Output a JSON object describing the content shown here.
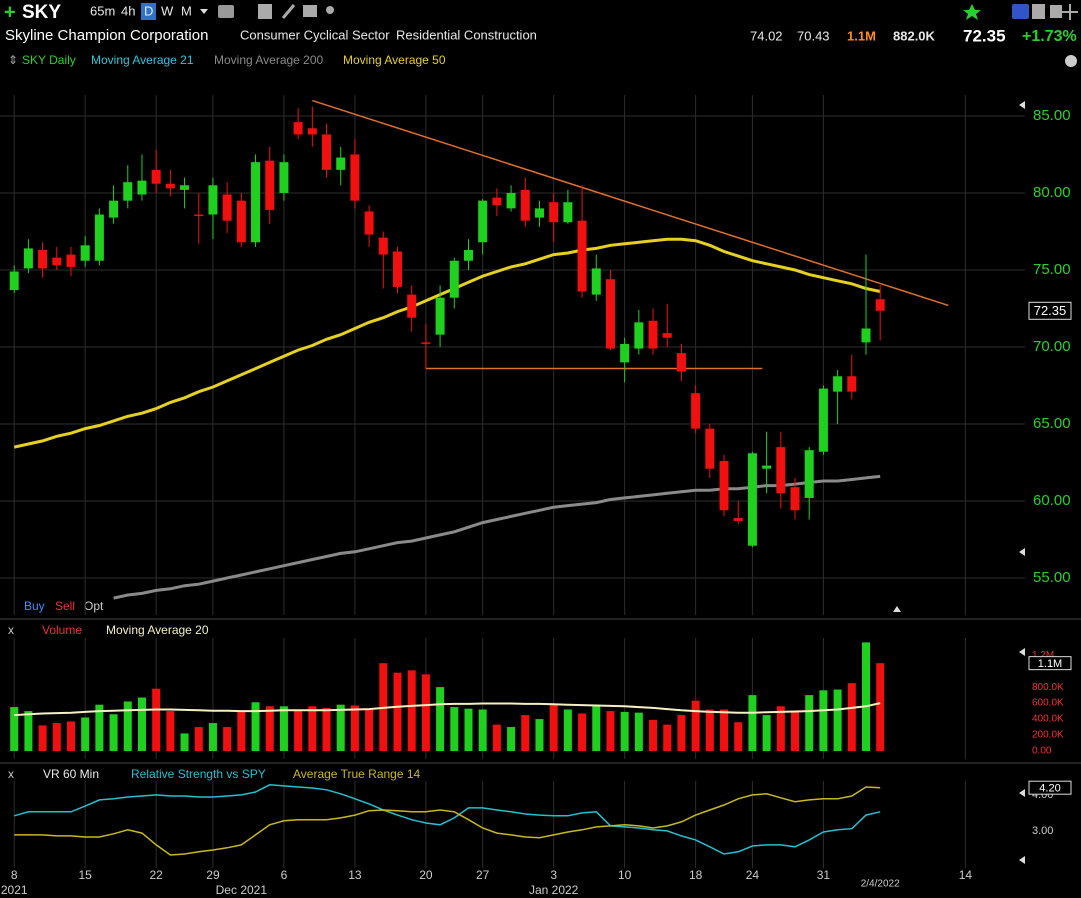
{
  "header": {
    "symbol": "SKY",
    "timeframes": [
      "65m",
      "4h",
      "D",
      "W",
      "M"
    ],
    "company": "Skyline Champion Corporation",
    "sector": "Consumer Cyclical Sector",
    "industry": "Residential Construction",
    "stats": [
      "74.02",
      "70.43",
      "1.1M",
      "882.0K"
    ],
    "last": "72.35",
    "change": "+1.73%"
  },
  "chart_data": [
    {
      "type": "candlestick",
      "legend_title": "SKY Daily",
      "legend_color": "#2ad02a",
      "up_color": "#1fd01f",
      "down_color": "#f01010",
      "open": [
        73.7,
        75.1,
        76.3,
        75.8,
        76,
        75.6,
        75.6,
        78.4,
        79.5,
        79.9,
        81.5,
        80.6,
        80.2,
        78.6,
        78.6,
        79.9,
        79.5,
        76.8,
        82.1,
        80,
        84.6,
        84.2,
        83.8,
        81.5,
        82.5,
        78.8,
        77.1,
        76.2,
        73.4,
        70.3,
        70.8,
        73.2,
        75.6,
        76.8,
        79.7,
        79,
        80.2,
        78.4,
        79.4,
        78.1,
        78.2,
        73.4,
        74.4,
        69,
        69.9,
        71.7,
        70.9,
        69.6,
        67,
        64.7,
        62.6,
        58.9,
        57.1,
        62.1,
        63.5,
        60.9,
        60.2,
        63.2,
        67.1,
        68.1,
        70.3,
        73.1
      ],
      "high": [
        75.3,
        77,
        76.8,
        76.5,
        76.5,
        77.2,
        79,
        80.5,
        81.8,
        82.5,
        82.8,
        81.5,
        81,
        80,
        81,
        80.7,
        80,
        82.5,
        83,
        82.5,
        85.5,
        85.6,
        84.5,
        83,
        83.5,
        79.2,
        77.5,
        76.5,
        74,
        71.5,
        74,
        75.8,
        77,
        79.6,
        80.3,
        80.5,
        81,
        79.5,
        80,
        80.2,
        80.5,
        76,
        75,
        70.6,
        72.4,
        72.5,
        72.8,
        70.2,
        67.5,
        65,
        63,
        60,
        63.2,
        64.5,
        64.5,
        61.5,
        63.5,
        67.5,
        68.5,
        69.5,
        76,
        74.02
      ],
      "low": [
        73.5,
        74.8,
        74.5,
        75,
        74.6,
        75.2,
        75.3,
        78,
        79,
        79.5,
        80,
        79.8,
        79,
        76.7,
        77,
        77.4,
        76.5,
        76.5,
        78,
        79.5,
        83.5,
        83,
        81,
        80.5,
        79,
        76.5,
        73.8,
        73.5,
        71,
        68.6,
        70,
        72.5,
        75,
        76,
        78.5,
        78.8,
        77.8,
        77.8,
        76.8,
        78,
        73.2,
        73,
        69.8,
        67.7,
        69.5,
        69.5,
        70,
        67.8,
        64.4,
        61.5,
        59,
        58.5,
        57,
        60.5,
        59.5,
        58.8,
        58.8,
        63,
        65,
        66.6,
        69.5,
        70.43
      ],
      "close": [
        74.9,
        76.4,
        75.1,
        75.3,
        75.2,
        76.6,
        78.6,
        79.5,
        80.7,
        80.8,
        80.6,
        80.3,
        80.5,
        78.5,
        80.5,
        78.2,
        76.8,
        82,
        78.9,
        82,
        83.8,
        83.8,
        81.5,
        82.3,
        79.5,
        77.3,
        76,
        73.9,
        71.9,
        70.2,
        73.2,
        75.6,
        76.3,
        79.5,
        79.2,
        80,
        78.2,
        79,
        78.1,
        79.4,
        73.6,
        75.1,
        69.9,
        70.2,
        71.6,
        69.9,
        70.6,
        68.4,
        64.7,
        62.1,
        59.4,
        58.7,
        63.1,
        62.3,
        60.5,
        59.4,
        63.3,
        67.3,
        68.1,
        67.1,
        71.2,
        72.35
      ],
      "overlays": [
        {
          "name": "Moving Average 21",
          "color": "#2cc8d8"
        },
        {
          "name": "Moving Average 200",
          "color": "#8a8a8a",
          "values": [
            null,
            null,
            null,
            null,
            null,
            null,
            null,
            53.7,
            53.9,
            54.0,
            54.2,
            54.3,
            54.5,
            54.6,
            54.8,
            55.0,
            55.2,
            55.4,
            55.6,
            55.8,
            56.0,
            56.2,
            56.4,
            56.6,
            56.7,
            56.9,
            57.1,
            57.3,
            57.4,
            57.6,
            57.8,
            58.0,
            58.3,
            58.6,
            58.8,
            59.0,
            59.2,
            59.4,
            59.6,
            59.7,
            59.8,
            59.9,
            60.1,
            60.2,
            60.3,
            60.4,
            60.5,
            60.6,
            60.7,
            60.7,
            60.8,
            60.8,
            60.9,
            61.0,
            61.0,
            61.1,
            61.2,
            61.3,
            61.3,
            61.4,
            61.5,
            61.6
          ]
        },
        {
          "name": "Moving Average 50",
          "color": "#e6d020",
          "values": [
            63.5,
            63.7,
            63.9,
            64.2,
            64.4,
            64.7,
            64.9,
            65.2,
            65.5,
            65.7,
            66.0,
            66.4,
            66.7,
            67.1,
            67.4,
            67.8,
            68.2,
            68.6,
            69.0,
            69.4,
            69.8,
            70.1,
            70.5,
            70.8,
            71.2,
            71.6,
            71.9,
            72.3,
            72.6,
            73.0,
            73.4,
            73.8,
            74.2,
            74.6,
            74.9,
            75.2,
            75.4,
            75.7,
            76.0,
            76.1,
            76.3,
            76.4,
            76.6,
            76.7,
            76.8,
            76.9,
            77.0,
            77.0,
            76.9,
            76.6,
            76.2,
            75.9,
            75.6,
            75.4,
            75.2,
            75.0,
            74.7,
            74.5,
            74.3,
            74.1,
            73.8,
            73.6
          ]
        }
      ],
      "trendlines": [
        {
          "x": [
            21,
            65.8
          ],
          "y": [
            86,
            72.7
          ],
          "color": "#e0702a"
        },
        {
          "x": [
            29,
            52.7
          ],
          "y": [
            68.6,
            68.6
          ],
          "color": "#e0702a"
        }
      ],
      "marker": {
        "value": 72.35,
        "label": "72.35"
      },
      "trade_buttons": [
        "Buy",
        "Sell",
        "Opt"
      ],
      "ylim": [
        52.6,
        86.36
      ],
      "yticks": [
        {
          "value": 55,
          "label": "55.00"
        },
        {
          "value": 60,
          "label": "60.00"
        },
        {
          "value": 65,
          "label": "65.00"
        },
        {
          "value": 70,
          "label": "70.00"
        },
        {
          "value": 75,
          "label": "75.00"
        },
        {
          "value": 80,
          "label": "80.00"
        },
        {
          "value": 85,
          "label": "85.00"
        }
      ],
      "xlim": [
        -1,
        71.2
      ],
      "xticks": [
        {
          "value": 0,
          "label": "8"
        },
        {
          "value": 5,
          "label": "15"
        },
        {
          "value": 10,
          "label": "22"
        },
        {
          "value": 14,
          "label": "29"
        },
        {
          "value": 19,
          "label": "6"
        },
        {
          "value": 24,
          "label": "13"
        },
        {
          "value": 29,
          "label": "20"
        },
        {
          "value": 33,
          "label": "27"
        },
        {
          "value": 38,
          "label": "3"
        },
        {
          "value": 43,
          "label": "10"
        },
        {
          "value": 48,
          "label": "18"
        },
        {
          "value": 52,
          "label": "24"
        },
        {
          "value": 57,
          "label": "31"
        },
        {
          "value": 67,
          "label": "14"
        }
      ],
      "periods": [
        {
          "value": 0,
          "label": "2021"
        },
        {
          "value": 16,
          "label": "Dec 2021"
        },
        {
          "value": 38,
          "label": "Jan 2022"
        }
      ],
      "current_date": {
        "value": 61,
        "label": "2/4/2022"
      },
      "grid": true
    },
    {
      "type": "bar",
      "title": "Volume",
      "title_color": "#f03030",
      "values": [
        550000,
        500000,
        320000,
        350000,
        370000,
        420000,
        580000,
        460000,
        620000,
        670000,
        780000,
        500000,
        220000,
        300000,
        350000,
        300000,
        490000,
        610000,
        560000,
        560000,
        520000,
        560000,
        540000,
        580000,
        570000,
        520000,
        1100000,
        980000,
        1010000,
        960000,
        800000,
        550000,
        530000,
        520000,
        330000,
        300000,
        450000,
        400000,
        580000,
        520000,
        470000,
        560000,
        500000,
        490000,
        480000,
        390000,
        330000,
        450000,
        630000,
        520000,
        520000,
        360000,
        700000,
        450000,
        560000,
        500000,
        700000,
        760000,
        770000,
        850000,
        1360000,
        1100000
      ],
      "series": [
        {
          "name": "Moving Average 20",
          "color": "#f5f0c0",
          "values": [
            450000,
            460000,
            470000,
            475000,
            480000,
            490000,
            500000,
            505000,
            510000,
            515000,
            520000,
            520000,
            515000,
            510000,
            505000,
            505000,
            500000,
            500000,
            505000,
            510000,
            510000,
            510000,
            510000,
            515000,
            520000,
            525000,
            540000,
            555000,
            565000,
            575000,
            585000,
            590000,
            590000,
            595000,
            595000,
            595000,
            590000,
            590000,
            585000,
            580000,
            575000,
            570000,
            565000,
            560000,
            550000,
            540000,
            525000,
            510000,
            500000,
            490000,
            485000,
            480000,
            480000,
            485000,
            490000,
            495000,
            500000,
            510000,
            520000,
            540000,
            560000,
            600000
          ]
        }
      ],
      "marker": {
        "value": 1100000,
        "label": "1.1M"
      },
      "ylim": [
        0,
        1390000
      ],
      "yticks": [
        {
          "value": 0,
          "label": "0.00"
        },
        {
          "value": 200000,
          "label": "200.0K"
        },
        {
          "value": 400000,
          "label": "400.0K"
        },
        {
          "value": 600000,
          "label": "600.0K"
        },
        {
          "value": 800000,
          "label": "800.0K"
        },
        {
          "value": 1200000,
          "label": "1.2M"
        }
      ]
    },
    {
      "type": "line",
      "series": [
        {
          "name": "VR 60 Min",
          "color": "#e8e8e8"
        },
        {
          "name": "Relative Strength vs SPY",
          "color": "#25c0d0",
          "values": [
            3.42,
            3.53,
            3.53,
            3.53,
            3.53,
            3.69,
            3.86,
            3.89,
            3.94,
            3.97,
            4.0,
            3.97,
            3.97,
            3.94,
            3.94,
            3.97,
            4.0,
            4.08,
            4.28,
            4.25,
            4.22,
            4.19,
            4.14,
            4.03,
            3.89,
            3.75,
            3.58,
            3.44,
            3.31,
            3.22,
            3.17,
            3.36,
            3.64,
            3.64,
            3.58,
            3.53,
            3.47,
            3.44,
            3.42,
            3.42,
            3.5,
            3.53,
            3.14,
            3.11,
            3.08,
            3.03,
            3.0,
            2.86,
            2.75,
            2.56,
            2.36,
            2.42,
            2.58,
            2.61,
            2.61,
            2.56,
            2.75,
            2.97,
            3.03,
            3.06,
            3.44,
            3.53
          ]
        },
        {
          "name": "Average True Range 14",
          "color": "#c8b820",
          "values": [
            2.89,
            2.89,
            2.89,
            2.86,
            2.86,
            2.83,
            2.83,
            2.92,
            3.03,
            2.94,
            2.61,
            2.33,
            2.36,
            2.42,
            2.47,
            2.53,
            2.61,
            2.89,
            3.17,
            3.28,
            3.31,
            3.31,
            3.31,
            3.36,
            3.44,
            3.56,
            3.58,
            3.56,
            3.53,
            3.53,
            3.58,
            3.53,
            3.31,
            3.08,
            2.94,
            2.89,
            2.83,
            2.81,
            2.89,
            2.97,
            3.03,
            3.11,
            3.14,
            3.17,
            3.14,
            3.08,
            3.14,
            3.25,
            3.44,
            3.58,
            3.72,
            3.89,
            4.0,
            4.03,
            3.92,
            3.81,
            3.86,
            3.89,
            3.89,
            3.97,
            4.22,
            4.2
          ]
        }
      ],
      "marker": {
        "value": 4.2,
        "label": "4.20"
      },
      "ylim": [
        1.97,
        4.33
      ],
      "yticks": [
        {
          "value": 3,
          "label": "3.00"
        },
        {
          "value": 4,
          "label": "4.00"
        }
      ]
    }
  ]
}
